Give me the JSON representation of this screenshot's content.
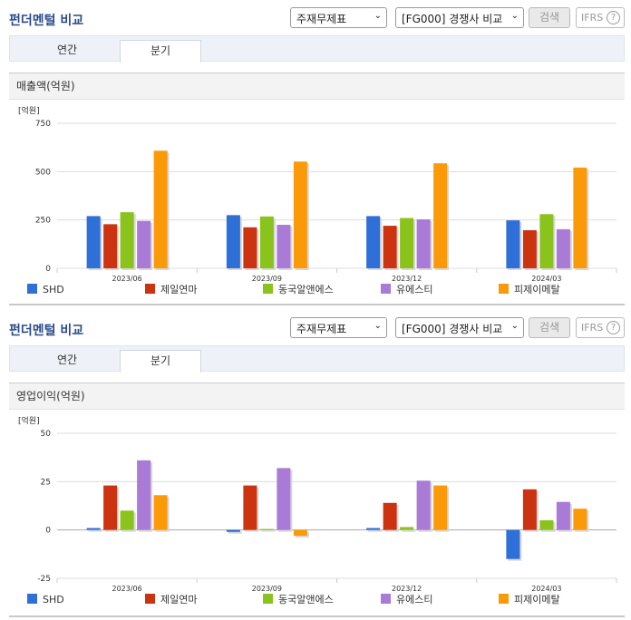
{
  "panels": [
    {
      "title": "펀더멘털 비교",
      "select1": "주재무제표",
      "select2": "[FG000] 경쟁사 비교",
      "search_label": "검색",
      "ifrs_label": "IFRS",
      "ifrs_help": "?",
      "tabs": [
        "연간",
        "분기"
      ],
      "active_tab": 1,
      "metric": "매출액(억원)"
    },
    {
      "title": "펀더멘털 비교",
      "select1": "주재무제표",
      "select2": "[FG000] 경쟁사 비교",
      "search_label": "검색",
      "ifrs_label": "IFRS",
      "ifrs_help": "?",
      "tabs": [
        "연간",
        "분기"
      ],
      "active_tab": 1,
      "metric": "영업이익(억원)"
    }
  ],
  "chevron": "⌄",
  "colors": [
    "#2f6fd8",
    "#cc3311",
    "#8ac31c",
    "#a97ad6",
    "#fb9a09"
  ],
  "chart_data": [
    {
      "type": "bar",
      "unit_label": "[억원]",
      "categories": [
        "2023/06",
        "2023/09",
        "2023/12",
        "2024/03"
      ],
      "ylim": [
        0,
        750
      ],
      "yticks": [
        0,
        250,
        500,
        750
      ],
      "grid": true,
      "legend": "bottom",
      "series": [
        {
          "name": "SHD",
          "values": [
            270,
            275,
            270,
            248
          ]
        },
        {
          "name": "제일연마",
          "values": [
            228,
            212,
            220,
            197
          ]
        },
        {
          "name": "동국알앤에스",
          "values": [
            290,
            268,
            260,
            280
          ]
        },
        {
          "name": "유에스티",
          "values": [
            245,
            225,
            253,
            202
          ]
        },
        {
          "name": "피제이메탈",
          "values": [
            608,
            552,
            543,
            521
          ]
        }
      ]
    },
    {
      "type": "bar",
      "unit_label": "[억원]",
      "categories": [
        "2023/06",
        "2023/09",
        "2023/12",
        "2024/03"
      ],
      "ylim": [
        -25,
        50
      ],
      "yticks": [
        -25,
        0,
        25,
        50
      ],
      "grid": true,
      "legend": "bottom",
      "series": [
        {
          "name": "SHD",
          "values": [
            1,
            -1,
            1,
            -15
          ]
        },
        {
          "name": "제일연마",
          "values": [
            23,
            23,
            14,
            21
          ]
        },
        {
          "name": "동국알앤에스",
          "values": [
            10,
            0.5,
            1.5,
            5
          ]
        },
        {
          "name": "유에스티",
          "values": [
            36,
            32,
            25.5,
            14.5
          ]
        },
        {
          "name": "피제이메탈",
          "values": [
            18,
            -3,
            23,
            11
          ]
        }
      ]
    }
  ]
}
